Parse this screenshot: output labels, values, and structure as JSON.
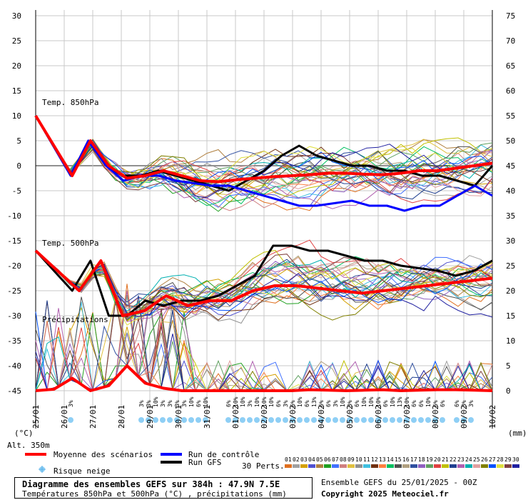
{
  "chart_data": {
    "type": "line",
    "x_dates": [
      "25/01",
      "26/01",
      "27/01",
      "28/01",
      "29/01",
      "30/01",
      "31/01",
      "01/02",
      "02/02",
      "03/02",
      "04/02",
      "05/02",
      "06/02",
      "07/02",
      "08/02",
      "09/02",
      "10/02"
    ],
    "x_unit_label": "(°C)",
    "alt_label": "Alt. 350m",
    "left_axis": {
      "ticks": [
        30,
        25,
        20,
        15,
        10,
        5,
        0,
        -5,
        -10,
        -15,
        -20,
        -25,
        -30,
        -35,
        -40,
        -45
      ]
    },
    "right_axis": {
      "unit": "(mm)",
      "ticks": [
        75,
        70,
        65,
        60,
        55,
        50,
        45,
        40,
        35,
        30,
        25,
        20,
        15,
        10,
        5,
        0
      ]
    },
    "section_labels": {
      "t850": "Temp. 850hPa",
      "t500": "Temp. 500hPa",
      "precip": "Précipitations"
    },
    "snow_risk_labels": [
      "3%",
      "3%",
      "3%",
      "10%",
      "3%",
      "3%",
      "3%",
      "3%",
      "10%",
      "6%",
      "10%",
      "6%",
      "10%",
      "10%",
      "3%",
      "10%",
      "10%",
      "10%",
      "6%",
      "3%",
      "6%",
      "10%",
      "6%",
      "13%",
      "6%",
      "6%",
      "3%",
      "10%",
      "3%",
      "6%",
      "10%",
      "10%",
      "10%",
      "6%",
      "10%",
      "13%",
      "10%",
      "6%",
      "6%",
      "10%",
      "6%",
      "6%",
      "6%",
      "3%",
      "3%",
      "3%"
    ],
    "series": [
      {
        "name": "Moyenne des scénarios",
        "color": "#ff0000",
        "t850": [
          10,
          4,
          -2,
          5,
          0,
          -2.5,
          -2,
          -1,
          -2,
          -3,
          -3.2,
          -2.8,
          -2.5,
          -2.2,
          -2,
          -1.8,
          -1.5,
          -1.5,
          -1.7,
          -1.8,
          -1.5,
          -1,
          -1,
          -0.5,
          0,
          0.5
        ],
        "t500": [
          -17,
          -21,
          -25,
          -19,
          -30,
          -29,
          -26,
          -28,
          -27,
          -27,
          -25,
          -24,
          -24,
          -24.5,
          -25,
          -25.5,
          -25,
          -24.5,
          -24,
          -23.5,
          -23,
          -22.5
        ],
        "precip_mm": [
          0,
          0.3,
          2.5,
          0,
          1,
          5,
          1.5,
          0.5,
          0,
          0,
          0,
          0,
          0,
          0,
          0,
          0.2,
          0.1,
          0,
          0.1,
          0.2,
          0,
          0.1,
          0.2,
          0.2,
          0.1,
          0
        ]
      },
      {
        "name": "Run de contrôle",
        "color": "#0000ff",
        "t850": [
          10,
          4,
          -2,
          5,
          0,
          -3,
          -2,
          -2,
          -3,
          -3.5,
          -4,
          -4,
          -5,
          -6,
          -7,
          -8,
          -8,
          -7.5,
          -7,
          -8,
          -8,
          -9,
          -8,
          -8,
          -6,
          -4,
          -6
        ]
      },
      {
        "name": "Run GFS",
        "color": "#000000",
        "t850": [
          10,
          4,
          -2,
          5,
          0,
          -2,
          -2,
          -1,
          -2,
          -3,
          -4,
          -5,
          -3,
          -1,
          2,
          4,
          2,
          1,
          0,
          0,
          -1,
          -1,
          -2,
          -2,
          -3,
          -4,
          0
        ],
        "t500": [
          -17,
          -21,
          -25,
          -19,
          -30,
          -30,
          -27,
          -28,
          -27,
          -27,
          -26,
          -24,
          -22,
          -16,
          -16,
          -17,
          -17,
          -18,
          -19,
          -19,
          -20,
          -20.5,
          -21,
          -22,
          -21,
          -19
        ]
      }
    ],
    "perturbations_count": 30,
    "members": [
      "01",
      "02",
      "03",
      "04",
      "05",
      "06",
      "07",
      "08",
      "09",
      "10",
      "11",
      "12",
      "13",
      "14",
      "15",
      "16",
      "17",
      "18",
      "19",
      "20",
      "21",
      "22",
      "23",
      "24",
      "25",
      "26",
      "27",
      "28",
      "29",
      "30"
    ],
    "member_colors": [
      "#e07020",
      "#a0a0a0",
      "#d4a000",
      "#5050d0",
      "#b08040",
      "#20a020",
      "#4070ff",
      "#d08080",
      "#e0c040",
      "#909090",
      "#40c0e0",
      "#703010",
      "#ff8040",
      "#00c060",
      "#505050",
      "#b0a080",
      "#3050a0",
      "#9060c0",
      "#60a060",
      "#e04040",
      "#c0c000",
      "#204090",
      "#b060b0",
      "#00b0b0",
      "#e0a0a0",
      "#808000",
      "#0050ff",
      "#e0e040",
      "#804040",
      "#2020a0"
    ],
    "grid": true
  },
  "legend": {
    "mean_label": "Moyenne des scénarios",
    "control_label": "Run de contrôle",
    "gfs_label": "Run GFS",
    "snow_label": "Risque neige",
    "perts_label": "30 Perts.",
    "title": "Diagramme des ensembles GEFS sur 384h : 47.9N 7.5E",
    "subtitle": "Températures 850hPa et 500hPa (°C) , précipitations (mm)",
    "run_info": "Ensemble GEFS du 25/01/2025 - 00Z",
    "copyright": "Copyright 2025 Meteociel.fr"
  }
}
